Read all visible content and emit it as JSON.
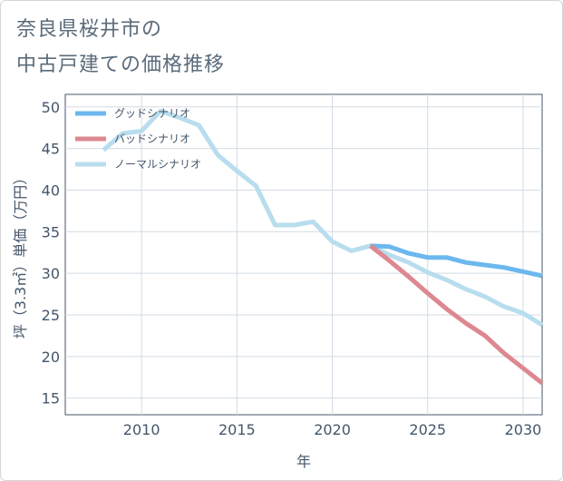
{
  "title_lines": [
    "奈良県桜井市の",
    "中古戸建ての価格推移"
  ],
  "chart_data": {
    "type": "line",
    "xlabel": "年",
    "ylabel": "坪（3.3㎡）単価（万円）",
    "xlim": [
      2006,
      2031
    ],
    "ylim": [
      13,
      51.5
    ],
    "xticks": [
      2010,
      2015,
      2020,
      2025,
      2030
    ],
    "yticks": [
      15,
      20,
      25,
      30,
      35,
      40,
      45,
      50
    ],
    "grid": true,
    "legend_position": "top-left",
    "series": [
      {
        "name": "グッドシナリオ",
        "color": "#6cb8ee",
        "x": [
          2022,
          2023,
          2024,
          2025,
          2026,
          2027,
          2028,
          2029,
          2030,
          2031
        ],
        "y": [
          33.3,
          33.2,
          32.4,
          31.9,
          31.9,
          31.3,
          31.0,
          30.7,
          30.2,
          29.7
        ]
      },
      {
        "name": "バッドシナリオ",
        "color": "#dd8890",
        "x": [
          2022,
          2023,
          2024,
          2025,
          2026,
          2027,
          2028,
          2029,
          2030,
          2031
        ],
        "y": [
          33.3,
          31.5,
          29.6,
          27.6,
          25.7,
          24.0,
          22.5,
          20.4,
          18.6,
          16.8
        ]
      },
      {
        "name": "ノーマルシナリオ",
        "color": "#b8ddee",
        "x": [
          2008,
          2009,
          2010,
          2011,
          2012,
          2013,
          2014,
          2015,
          2016,
          2017,
          2018,
          2019,
          2020,
          2021,
          2022,
          2023,
          2024,
          2025,
          2026,
          2027,
          2028,
          2029,
          2030,
          2031
        ],
        "y": [
          44.8,
          46.8,
          47.1,
          49.5,
          48.7,
          47.8,
          44.2,
          42.3,
          40.5,
          35.8,
          35.8,
          36.2,
          33.8,
          32.7,
          33.3,
          32.2,
          31.3,
          30.1,
          29.2,
          28.1,
          27.2,
          26.0,
          25.2,
          23.8
        ]
      }
    ]
  }
}
